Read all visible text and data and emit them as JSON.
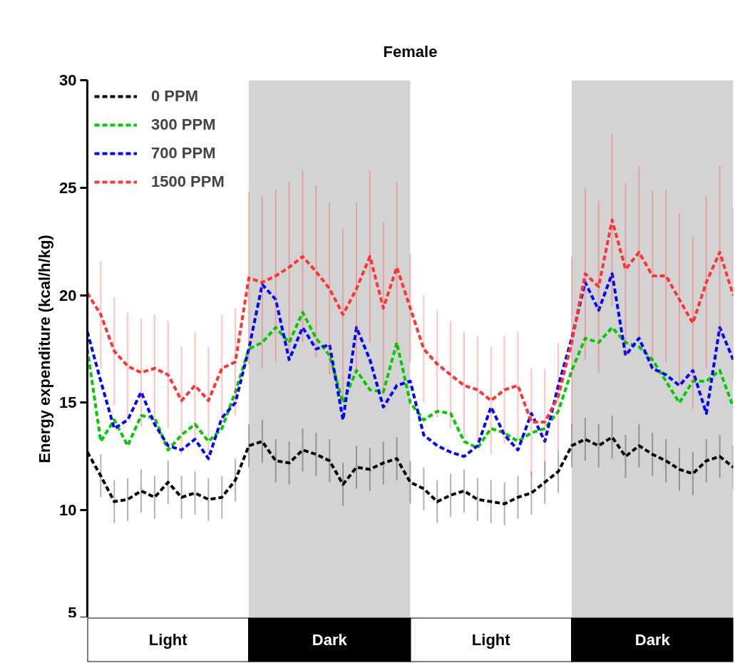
{
  "chart_data": {
    "type": "line",
    "title": "Female",
    "ylabel": "Energy expenditure (kcal/h/kg)",
    "categories": [
      null,
      null,
      null,
      null,
      null,
      null,
      null,
      null,
      null,
      null,
      null,
      null,
      null,
      null,
      null,
      null,
      null,
      null,
      null,
      null,
      null,
      null,
      null,
      null,
      null,
      null,
      null,
      null,
      null,
      null,
      null,
      null,
      null,
      null,
      null,
      null,
      null,
      null,
      null,
      null,
      null,
      null,
      null,
      null,
      null,
      null,
      null,
      null,
      null
    ],
    "annotations": [
      "Light",
      "Dark",
      "Light",
      "Dark"
    ],
    "ylim": [
      5,
      30
    ],
    "yticks": [
      5,
      10,
      15,
      20,
      25,
      30
    ],
    "tick_labels": "y",
    "legend": "top left",
    "line_style": "dashed",
    "series": [
      {
        "name": "0 PPM",
        "color": "#000000",
        "values": [
          12.7,
          11.6,
          10.4,
          10.5,
          10.9,
          10.6,
          11.3,
          10.6,
          10.8,
          10.5,
          10.6,
          11.4,
          13.0,
          13.2,
          12.3,
          12.2,
          12.8,
          12.6,
          12.3,
          11.2,
          12.0,
          11.9,
          12.2,
          12.4,
          11.3,
          11.0,
          10.4,
          10.7,
          10.9,
          10.5,
          10.4,
          10.3,
          10.6,
          10.8,
          11.3,
          11.8,
          13.0,
          13.3,
          13.0,
          13.4,
          12.5,
          13.0,
          12.6,
          12.3,
          11.9,
          11.7,
          12.3,
          12.5,
          12.0
        ],
        "errors": [
          1,
          1,
          1,
          1,
          1,
          1,
          1,
          1,
          1,
          1,
          1,
          1,
          1,
          1,
          1,
          1,
          1,
          1,
          1,
          1,
          1,
          1,
          1,
          1,
          1,
          1,
          1,
          1,
          1,
          1,
          1,
          1,
          1,
          1,
          1,
          1,
          1,
          1,
          1,
          1,
          1,
          1,
          1,
          1,
          1,
          1,
          1,
          1,
          1
        ]
      },
      {
        "name": "300 PPM",
        "color": "#00cc00",
        "values": [
          17.5,
          13.2,
          14.2,
          13.0,
          14.4,
          14.3,
          12.8,
          13.5,
          14.0,
          13.2,
          13.8,
          15.5,
          17.5,
          17.8,
          18.5,
          17.8,
          19.2,
          18.0,
          17.2,
          15.0,
          16.5,
          15.6,
          15.5,
          17.8,
          15.0,
          14.2,
          14.6,
          14.5,
          13.2,
          12.9,
          13.8,
          13.6,
          13.2,
          13.6,
          13.8,
          14.6,
          16.5,
          18.0,
          17.8,
          18.5,
          17.8,
          17.6,
          17.0,
          16.0,
          15.0,
          16.0,
          16.0,
          16.5,
          14.8
        ]
      },
      {
        "name": "700 PPM",
        "color": "#0000ff",
        "values": [
          18.3,
          16.0,
          13.8,
          14.2,
          15.5,
          14.0,
          13.0,
          12.8,
          13.3,
          12.4,
          14.3,
          15.0,
          17.5,
          20.5,
          19.8,
          17.0,
          18.5,
          17.5,
          17.7,
          14.2,
          18.5,
          17.0,
          14.8,
          15.8,
          16.0,
          13.5,
          13.0,
          12.7,
          12.5,
          13.0,
          14.8,
          13.5,
          12.8,
          14.5,
          13.2,
          15.8,
          18.0,
          20.6,
          19.3,
          21.0,
          17.2,
          18.0,
          16.6,
          16.3,
          15.8,
          16.5,
          14.5,
          18.5,
          17.0
        ]
      },
      {
        "name": "1500 PPM",
        "color": "#ff3333",
        "values": [
          20.1,
          19.1,
          17.4,
          16.7,
          16.4,
          16.6,
          16.3,
          15.1,
          15.8,
          15.1,
          16.6,
          16.9,
          20.8,
          20.6,
          20.9,
          21.3,
          21.8,
          21.1,
          20.3,
          19.1,
          20.3,
          21.8,
          19.4,
          21.3,
          19.4,
          17.5,
          16.8,
          16.3,
          15.8,
          15.6,
          15.1,
          15.6,
          15.8,
          14.1,
          14.1,
          15.3,
          17.8,
          21.0,
          20.4,
          23.5,
          21.2,
          22.0,
          20.9,
          20.9,
          19.8,
          18.7,
          20.6,
          22.0,
          20.0
        ],
        "errors": [
          null,
          2.5,
          2.5,
          2.5,
          2.5,
          2.5,
          2.5,
          2.5,
          2.5,
          2.5,
          2.5,
          2.5,
          4,
          4,
          4,
          4,
          4,
          4,
          4,
          4,
          4,
          4,
          4,
          4,
          2.5,
          2.5,
          2.5,
          2.5,
          2.5,
          2.5,
          2.5,
          2.5,
          2.5,
          2.5,
          2.5,
          2.5,
          4,
          4,
          4,
          4,
          4,
          4,
          4,
          4,
          4,
          4,
          4,
          4,
          4
        ]
      }
    ]
  }
}
